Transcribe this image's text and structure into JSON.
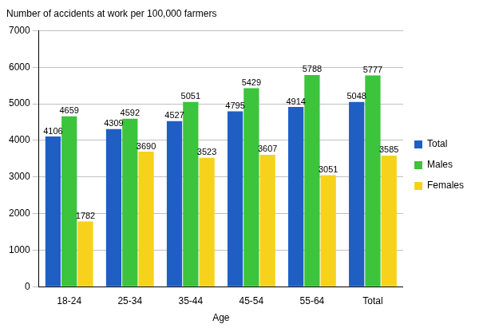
{
  "chart_data": {
    "type": "bar",
    "title": "Number of accidents at work per 100,000 farmers",
    "x_label": "Age",
    "categories": [
      "18-24",
      "25-34",
      "35-44",
      "45-54",
      "55-64",
      "Total"
    ],
    "series": [
      {
        "name": "Total",
        "color": "#1f5fc4",
        "values": [
          4106,
          4309,
          4527,
          4795,
          4914,
          5048
        ]
      },
      {
        "name": "Males",
        "color": "#3cc43c",
        "values": [
          4659,
          4592,
          5051,
          5429,
          5788,
          5777
        ]
      },
      {
        "name": "Females",
        "color": "#f6d21c",
        "values": [
          1782,
          3690,
          3523,
          3607,
          3051,
          3585
        ]
      }
    ],
    "ylim": [
      0,
      7000
    ],
    "yticks": [
      0,
      1000,
      2000,
      3000,
      4000,
      5000,
      6000,
      7000
    ],
    "grid": true,
    "legend": "right",
    "data_labels": true
  }
}
